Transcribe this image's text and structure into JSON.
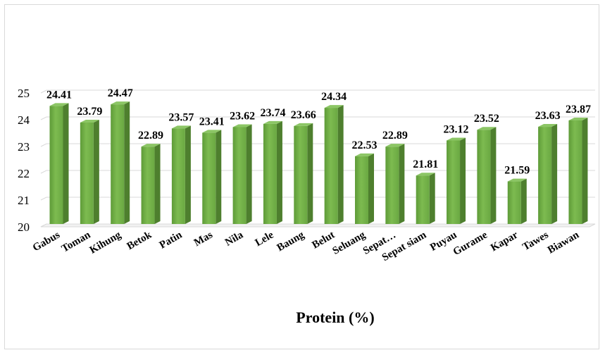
{
  "chart_data": {
    "type": "bar",
    "title": "",
    "xlabel": "Protein (%)",
    "ylabel": "",
    "ylim": [
      20,
      25
    ],
    "yticks": [
      "20",
      "21",
      "22",
      "23",
      "24",
      "25"
    ],
    "grid": true,
    "legend": "none",
    "categories": [
      "Gabus",
      "Toman",
      "Kihung",
      "Betok",
      "Patin",
      "Mas",
      "Nila",
      "Lele",
      "Baung",
      "Belut",
      "Seluang",
      "Sepat…",
      "Sepat siam",
      "Puyau",
      "Gurame",
      "Kapar",
      "Tawes",
      "Biawan"
    ],
    "values": [
      24.41,
      23.79,
      24.47,
      22.89,
      23.57,
      23.41,
      23.62,
      23.74,
      23.66,
      24.34,
      22.53,
      22.89,
      21.81,
      23.12,
      23.52,
      21.59,
      23.63,
      23.87
    ],
    "value_labels": [
      "24.41",
      "23.79",
      "24.47",
      "22.89",
      "23.57",
      "23.41",
      "23.62",
      "23.74",
      "23.66",
      "24.34",
      "22.53",
      "22.89",
      "21.81",
      "23.12",
      "23.52",
      "21.59",
      "23.63",
      "23.87"
    ],
    "colors": {
      "bar_front": "#70ad47",
      "bar_side": "#4e7f2e",
      "bar_top": "#8cc665",
      "grid": "#d9d9d9"
    }
  }
}
